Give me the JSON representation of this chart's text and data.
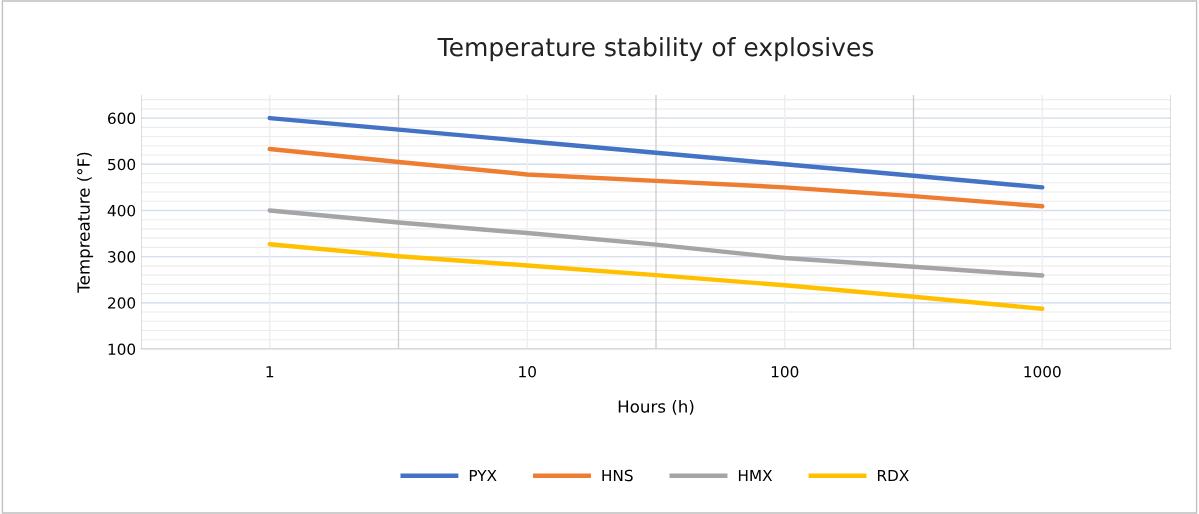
{
  "chart_data": {
    "type": "line",
    "title": "Temperature stability of explosives",
    "xlabel": "Hours (h)",
    "ylabel": "Tempreature (°F)",
    "categories": [
      "1",
      null,
      "10",
      null,
      "100",
      null,
      "1000"
    ],
    "series": [
      {
        "name": "PYX",
        "color": "#4472c4",
        "values": [
          600,
          575,
          550,
          525,
          500,
          475,
          450
        ]
      },
      {
        "name": "HNS",
        "color": "#ed7d31",
        "values": [
          533,
          505,
          478,
          464,
          450,
          431,
          409
        ]
      },
      {
        "name": "HMX",
        "color": "#a5a5a5",
        "values": [
          400,
          374,
          351,
          326,
          297,
          278,
          259
        ]
      },
      {
        "name": "RDX",
        "color": "#ffc000",
        "values": [
          327,
          301,
          281,
          260,
          238,
          213,
          187
        ]
      }
    ],
    "ylim": [
      100,
      650
    ],
    "yticks": [
      100,
      200,
      300,
      400,
      500,
      600
    ],
    "grid": true,
    "legend": "bottom",
    "marker": "none",
    "line_style": "solid"
  }
}
